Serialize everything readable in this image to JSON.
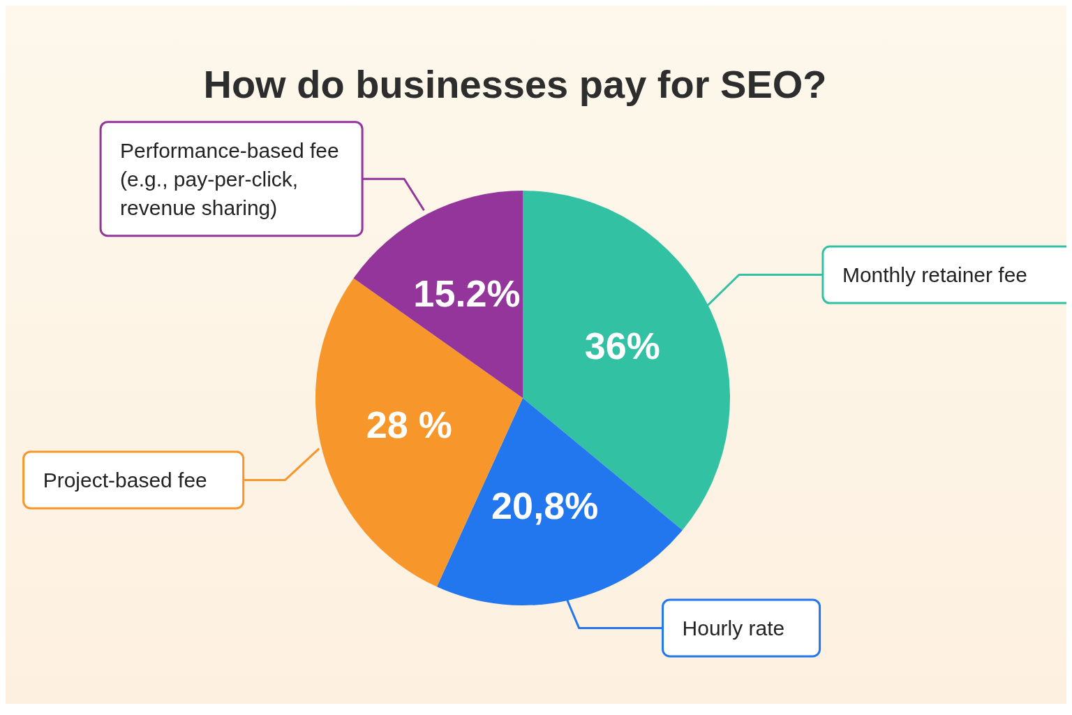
{
  "chart_data": {
    "type": "pie",
    "title": "How do businesses pay for SEO?",
    "categories": [
      "Monthly retainer fee",
      "Hourly rate",
      "Project-based fee",
      "Performance-based fee (e.g., pay-per-click, revenue sharing)"
    ],
    "values": [
      36,
      20.8,
      28,
      15.2
    ],
    "value_labels": [
      "36%",
      "20,8%",
      "28 %",
      "15.2%"
    ],
    "colors": [
      "#33c1a3",
      "#2277ee",
      "#f7962a",
      "#93359b"
    ]
  }
}
